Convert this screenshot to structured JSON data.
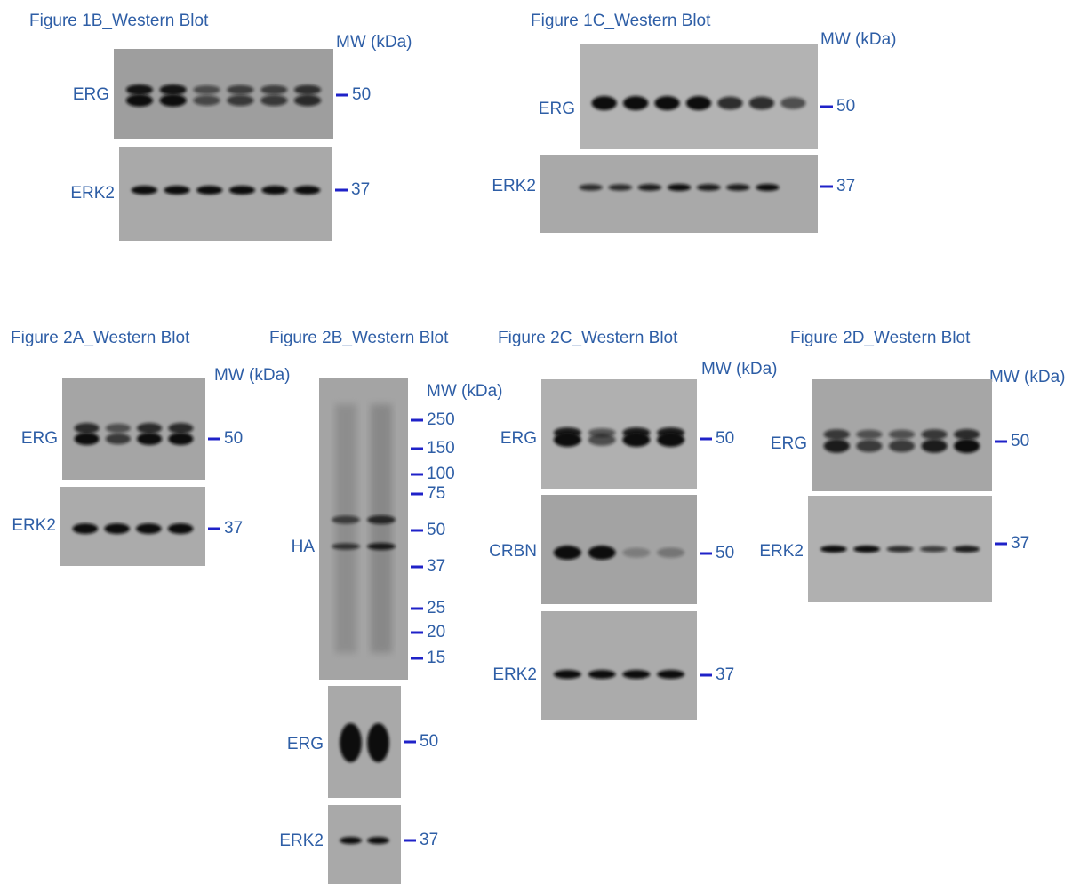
{
  "figures": [
    {
      "title": "Figure 1B_Western Blot",
      "mw_label": "MW (kDa)",
      "blots": [
        {
          "label": "ERG",
          "markers": [
            50
          ]
        },
        {
          "label": "ERK2",
          "markers": [
            37
          ]
        }
      ]
    },
    {
      "title": "Figure 1C_Western Blot",
      "mw_label": "MW (kDa)",
      "blots": [
        {
          "label": "ERG",
          "markers": [
            50
          ]
        },
        {
          "label": "ERK2",
          "markers": [
            37
          ]
        }
      ]
    },
    {
      "title": "Figure 2A_Western Blot",
      "mw_label": "MW (kDa)",
      "blots": [
        {
          "label": "ERG",
          "markers": [
            50
          ]
        },
        {
          "label": "ERK2",
          "markers": [
            37
          ]
        }
      ]
    },
    {
      "title": "Figure 2B_Western Blot",
      "mw_label": "MW (kDa)",
      "blots": [
        {
          "label": "HA",
          "markers": [
            250,
            150,
            100,
            75,
            50,
            37,
            25,
            20,
            15
          ]
        },
        {
          "label": "ERG",
          "markers": [
            50
          ]
        },
        {
          "label": "ERK2",
          "markers": [
            37
          ]
        }
      ]
    },
    {
      "title": "Figure 2C_Western Blot",
      "mw_label": "MW (kDa)",
      "blots": [
        {
          "label": "ERG",
          "markers": [
            50
          ]
        },
        {
          "label": "CRBN",
          "markers": [
            50
          ]
        },
        {
          "label": "ERK2",
          "markers": [
            37
          ]
        }
      ]
    },
    {
      "title": "Figure 2D_Western Blot",
      "mw_label": "MW (kDa)",
      "blots": [
        {
          "label": "ERG",
          "markers": [
            50
          ]
        },
        {
          "label": "ERK2",
          "markers": [
            37
          ]
        }
      ]
    }
  ]
}
